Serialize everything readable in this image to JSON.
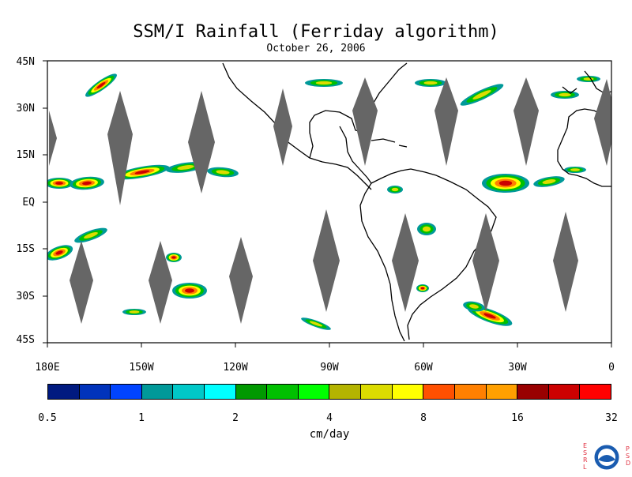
{
  "title": "SSM/I Rainfall (Ferriday algorithm)",
  "date": "October 26, 2006",
  "lat_labels": [
    "45N",
    "30N",
    "15N",
    "EQ",
    "15S",
    "30S",
    "45S"
  ],
  "lon_labels": [
    "180E",
    "150W",
    "120W",
    "90W",
    "60W",
    "30W",
    "0"
  ],
  "colorbar": {
    "tick_labels": [
      "0.5",
      "1",
      "2",
      "4",
      "8",
      "16",
      "32"
    ],
    "units": "cm/day",
    "colors": [
      "#001a80",
      "#0033bb",
      "#0044ff",
      "#009999",
      "#00c8c8",
      "#00ffff",
      "#009900",
      "#00c000",
      "#00ff00",
      "#b4b400",
      "#dcdc00",
      "#ffff00",
      "#ff5000",
      "#ff8000",
      "#ffa000",
      "#990000",
      "#cc0000",
      "#ff0000"
    ]
  },
  "logo": {
    "left_letters": "ESRL",
    "right_letters": "PSD",
    "badge_text": "NOAA"
  }
}
